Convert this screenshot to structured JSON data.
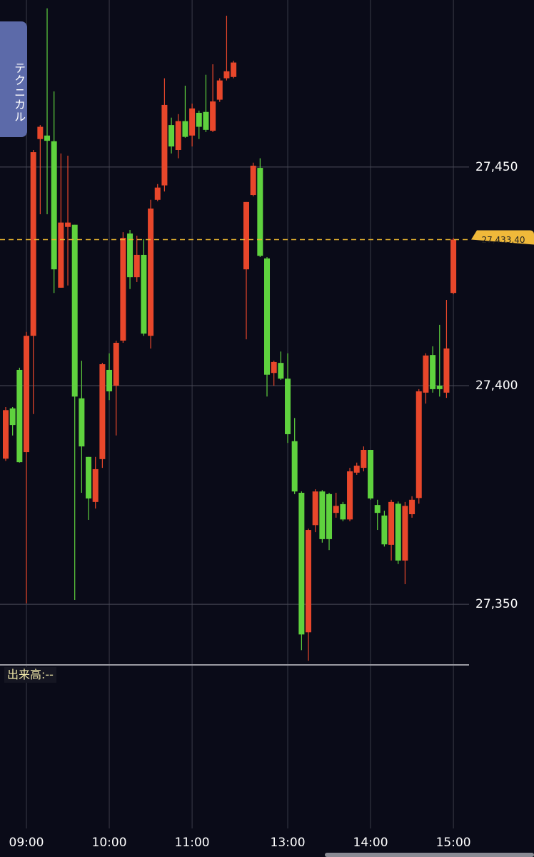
{
  "tab_label": "テクニカル",
  "volume_label": "出来高:--",
  "chart_data": {
    "type": "candlestick",
    "up_color": "#e8472b",
    "down_color": "#5fd23e",
    "grid": true,
    "ylim": [
      27336.3,
      27488.2
    ],
    "yticks": [
      {
        "value": 27450,
        "label": "27,450"
      },
      {
        "value": 27400,
        "label": "27,400"
      },
      {
        "value": 27350,
        "label": "27,350"
      }
    ],
    "last_price": {
      "value": 27433.4,
      "label": "27,433.40"
    },
    "categories": [
      null,
      null,
      null,
      "09:00",
      null,
      null,
      null,
      null,
      null,
      null,
      null,
      null,
      null,
      null,
      null,
      "10:00",
      null,
      null,
      null,
      null,
      null,
      null,
      null,
      null,
      null,
      null,
      null,
      "11:00",
      null,
      null,
      null,
      null,
      null,
      null,
      null,
      null,
      null,
      null,
      null,
      null,
      "13:00",
      null,
      null,
      null,
      null,
      null,
      null,
      null,
      null,
      null,
      null,
      null,
      "14:00",
      null,
      null,
      null,
      null,
      null,
      null,
      null,
      null,
      null,
      null,
      null,
      "15:00"
    ],
    "open": [
      27383.3,
      27394.8,
      27403.6,
      27384.8,
      27411.4,
      27456.4,
      27457.2,
      27455.9,
      27422.4,
      27436.3,
      27436.8,
      27397.1,
      27383.7,
      27373.4,
      27383.2,
      27403.6,
      27400.0,
      27410.3,
      27434.8,
      27424.8,
      27429.9,
      27411.4,
      27442.5,
      27445.8,
      27459.6,
      27453.9,
      27460.5,
      27457.2,
      27462.4,
      27462.6,
      27458.3,
      27465.4,
      27470.3,
      27470.6,
      27426.6,
      27443.6,
      27449.8,
      27429.1,
      27402.9,
      27405.2,
      27401.6,
      27387.3,
      27375.5,
      27343.6,
      27368.1,
      27375.8,
      27375.2,
      27370.9,
      27372.9,
      27369.4,
      27380.1,
      27381.2,
      27385.3,
      27372.7,
      27370.3,
      27363.6,
      27373.0,
      27360.0,
      27370.6,
      27374.3,
      27398.4,
      27407.0,
      27400.0,
      27398.4,
      27421.2
    ],
    "high": [
      27395.1,
      27395.1,
      27404.1,
      27412.3,
      27453.9,
      27459.6,
      27486.3,
      27467.3,
      27453.1,
      27452.6,
      27436.8,
      27405.7,
      27383.7,
      27383.7,
      27405.2,
      27407.4,
      27410.3,
      27435.1,
      27435.6,
      27434.3,
      27433.5,
      27442.5,
      27446.1,
      27470.3,
      27461.3,
      27462.1,
      27468.6,
      27464.5,
      27462.9,
      27471.1,
      27473.5,
      27470.3,
      27484.6,
      27474.3,
      27442.0,
      27451.0,
      27452.0,
      27429.4,
      27405.7,
      27407.8,
      27407.4,
      27392.6,
      27375.8,
      27367.3,
      27376.3,
      27376.1,
      27375.5,
      27375.5,
      27373.4,
      27381.2,
      27382.4,
      27386.1,
      27385.3,
      27373.9,
      27371.4,
      27373.9,
      27373.5,
      27373.4,
      27374.7,
      27399.2,
      27407.4,
      27409.0,
      27413.9,
      27419.6,
      27433.8
    ],
    "low": [
      27382.8,
      27388.6,
      27382.4,
      27350.2,
      27393.5,
      27439.2,
      27439.2,
      27421.2,
      27422.4,
      27422.9,
      27351.0,
      27375.5,
      27369.3,
      27371.9,
      27381.2,
      27396.7,
      27388.6,
      27409.8,
      27422.1,
      27423.7,
      27411.4,
      27408.5,
      27442.2,
      27444.4,
      27453.1,
      27452.0,
      27456.7,
      27454.7,
      27456.4,
      27458.0,
      27458.0,
      27464.9,
      27469.8,
      27470.3,
      27410.6,
      27443.3,
      27429.4,
      27397.5,
      27400.0,
      27401.3,
      27386.9,
      27375.2,
      27339.5,
      27337.1,
      27366.5,
      27364.1,
      27362.4,
      27369.8,
      27369.0,
      27369.0,
      27379.6,
      27380.4,
      27373.9,
      27367.0,
      27363.2,
      27360.0,
      27359.2,
      27354.6,
      27369.8,
      27373.0,
      27395.9,
      27398.4,
      27397.5,
      27397.2,
      27420.9
    ],
    "close": [
      27394.4,
      27391.0,
      27382.5,
      27411.4,
      27453.4,
      27459.2,
      27456.0,
      27426.6,
      27437.3,
      27437.3,
      27397.5,
      27386.1,
      27374.2,
      27380.9,
      27404.9,
      27398.7,
      27409.8,
      27433.8,
      27424.8,
      27429.9,
      27411.9,
      27440.5,
      27445.3,
      27464.2,
      27454.7,
      27460.5,
      27456.9,
      27463.4,
      27459.2,
      27458.5,
      27465.0,
      27469.8,
      27471.9,
      27473.9,
      27442.0,
      27450.3,
      27429.7,
      27402.5,
      27405.4,
      27401.6,
      27388.9,
      27375.8,
      27343.1,
      27367.0,
      27375.8,
      27364.9,
      27364.9,
      27372.5,
      27369.4,
      27380.4,
      27381.7,
      27385.3,
      27374.2,
      27370.9,
      27363.7,
      27373.4,
      27360.0,
      27372.5,
      27373.9,
      27398.7,
      27406.9,
      27399.2,
      27399.2,
      27408.5,
      27433.4
    ]
  }
}
